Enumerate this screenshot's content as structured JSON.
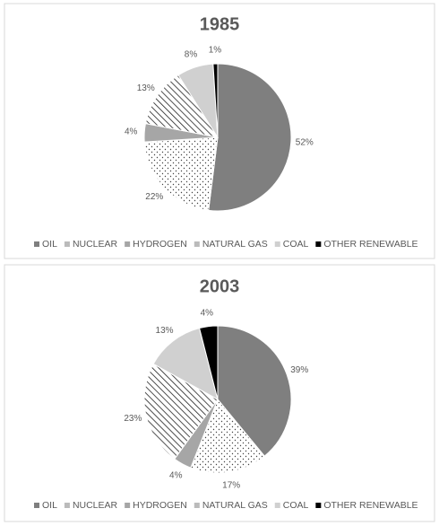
{
  "chart_data": [
    {
      "type": "pie",
      "title": "1985",
      "categories": [
        "OIL",
        "NUCLEAR",
        "HYDROGEN",
        "NATURAL GAS",
        "COAL",
        "OTHER RENEWABLE"
      ],
      "values": [
        52,
        22,
        4,
        13,
        8,
        1
      ],
      "value_labels": [
        "52%",
        "22%",
        "4%",
        "13%",
        "8%",
        "1%"
      ],
      "colors": [
        "#7f7f7f",
        "#ffffff",
        "#a6a6a6",
        "#ffffff",
        "#d0d0d0",
        "#000000"
      ],
      "patterns": [
        null,
        "dots",
        null,
        "hatch",
        null,
        null
      ]
    },
    {
      "type": "pie",
      "title": "2003",
      "categories": [
        "OIL",
        "NUCLEAR",
        "HYDROGEN",
        "NATURAL GAS",
        "COAL",
        "OTHER RENEWABLE"
      ],
      "values": [
        39,
        17,
        4,
        23,
        13,
        4
      ],
      "value_labels": [
        "39%",
        "17%",
        "4%",
        "23%",
        "13%",
        "4%"
      ],
      "colors": [
        "#7f7f7f",
        "#ffffff",
        "#a6a6a6",
        "#ffffff",
        "#d0d0d0",
        "#000000"
      ],
      "patterns": [
        null,
        "dots",
        null,
        "hatch",
        null,
        null
      ]
    }
  ]
}
